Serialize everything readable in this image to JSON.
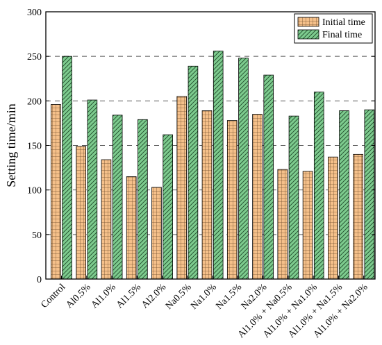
{
  "chart_data": {
    "type": "bar",
    "categories": [
      "Control",
      "Al0.5%",
      "Al1.0%",
      "Al1.5%",
      "Al2.0%",
      "Na0.5%",
      "Na1.0%",
      "Na1.5%",
      "Na2.0%",
      "Al1.0% + Na0.5%",
      "Al1.0% + Na1.0%",
      "Al1.0% + Na1.5%",
      "Al1.0% + Na2.0%"
    ],
    "series": [
      {
        "name": "Initial time",
        "values": [
          196,
          149,
          134,
          115,
          103,
          205,
          189,
          178,
          185,
          123,
          121,
          137,
          140
        ],
        "color": "#F5C08A",
        "pattern": "grid"
      },
      {
        "name": "Final time",
        "values": [
          250,
          201,
          184,
          179,
          162,
          239,
          256,
          248,
          229,
          183,
          210,
          189,
          190
        ],
        "color": "#7DCB8E",
        "pattern": "diagonal-hatch"
      }
    ],
    "xlabel": "",
    "ylabel": "Setting time/min",
    "ylim": [
      0,
      300
    ],
    "yticks": [
      0,
      50,
      100,
      150,
      200,
      250,
      300
    ],
    "grid": "horizontal dashed",
    "legend_position": "top-right"
  }
}
